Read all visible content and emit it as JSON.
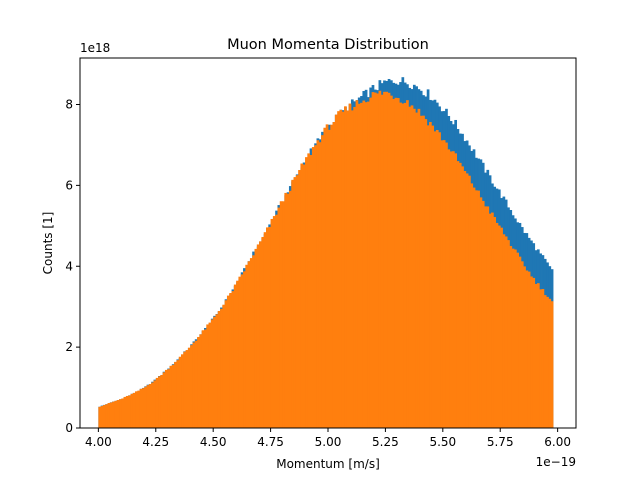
{
  "chart_data": {
    "type": "bar",
    "title": "Muon Momenta Distribution",
    "xlabel": "Momentum [m/s]",
    "ylabel": "Counts [1]",
    "x_offset_text": "1e−19",
    "y_offset_text": "1e18",
    "x_scale_exponent": -19,
    "y_scale_exponent": 18,
    "xlim": [
      3.92,
      6.08
    ],
    "ylim": [
      0,
      9.15
    ],
    "xticks": [
      4.0,
      4.25,
      4.5,
      4.75,
      5.0,
      5.25,
      5.5,
      5.75,
      6.0
    ],
    "xtick_labels": [
      "4.00",
      "4.25",
      "4.50",
      "4.75",
      "5.00",
      "5.25",
      "5.50",
      "5.75",
      "6.00"
    ],
    "yticks": [
      0,
      2,
      4,
      6,
      8
    ],
    "ytick_labels": [
      "0",
      "2",
      "4",
      "6",
      "8"
    ],
    "grid": false,
    "legend": "none",
    "bins": {
      "start": 4.0,
      "end": 5.98,
      "count": 198
    },
    "series": [
      {
        "color": "#1f77b4",
        "knots_x": [
          4.0,
          4.05,
          4.1,
          4.15,
          4.2,
          4.25,
          4.3,
          4.35,
          4.4,
          4.45,
          4.5,
          4.55,
          4.6,
          4.65,
          4.7,
          4.75,
          4.8,
          4.85,
          4.9,
          4.95,
          5.0,
          5.05,
          5.1,
          5.15,
          5.2,
          5.25,
          5.3,
          5.35,
          5.4,
          5.45,
          5.5,
          5.55,
          5.6,
          5.65,
          5.7,
          5.75,
          5.8,
          5.85,
          5.9,
          5.95,
          5.98
        ],
        "knots_y": [
          0.52,
          0.62,
          0.72,
          0.85,
          1.0,
          1.2,
          1.45,
          1.72,
          2.02,
          2.35,
          2.7,
          3.1,
          3.55,
          4.05,
          4.55,
          5.05,
          5.6,
          6.1,
          6.6,
          7.05,
          7.45,
          7.75,
          8.0,
          8.2,
          8.4,
          8.55,
          8.6,
          8.55,
          8.4,
          8.2,
          7.9,
          7.55,
          7.15,
          6.7,
          6.25,
          5.8,
          5.35,
          4.9,
          4.5,
          4.1,
          3.85
        ]
      },
      {
        "color": "#ff7f0e",
        "knots_x": [
          4.0,
          4.05,
          4.1,
          4.15,
          4.2,
          4.25,
          4.3,
          4.35,
          4.4,
          4.45,
          4.5,
          4.55,
          4.6,
          4.65,
          4.7,
          4.75,
          4.8,
          4.85,
          4.9,
          4.95,
          5.0,
          5.05,
          5.1,
          5.15,
          5.2,
          5.25,
          5.3,
          5.35,
          5.4,
          5.45,
          5.5,
          5.55,
          5.6,
          5.65,
          5.7,
          5.75,
          5.8,
          5.85,
          5.9,
          5.95,
          5.98
        ],
        "knots_y": [
          0.52,
          0.62,
          0.72,
          0.85,
          1.0,
          1.2,
          1.45,
          1.72,
          2.02,
          2.35,
          2.7,
          3.1,
          3.55,
          4.05,
          4.55,
          5.05,
          5.6,
          6.1,
          6.6,
          7.05,
          7.45,
          7.75,
          7.95,
          8.1,
          8.25,
          8.3,
          8.2,
          8.05,
          7.8,
          7.5,
          7.15,
          6.75,
          6.3,
          5.85,
          5.4,
          4.95,
          4.5,
          4.05,
          3.65,
          3.3,
          3.1
        ]
      }
    ]
  }
}
